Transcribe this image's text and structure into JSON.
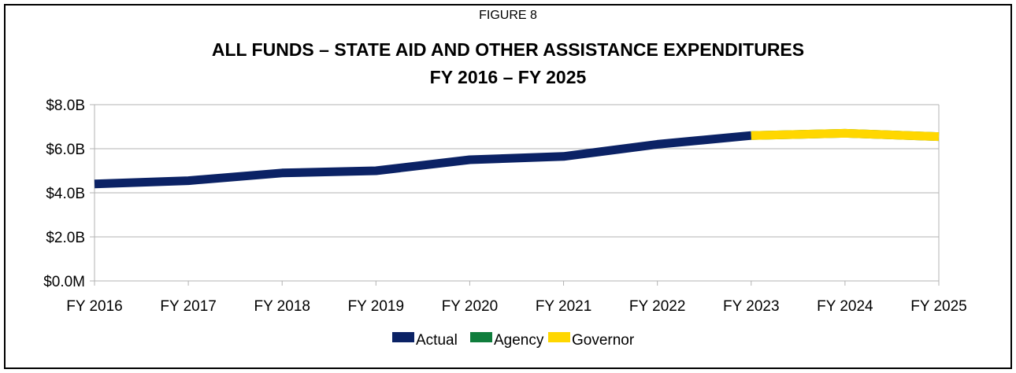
{
  "figure": {
    "label": "FIGURE 8",
    "title_line1": "ALL FUNDS – STATE AID AND OTHER ASSISTANCE EXPENDITURES",
    "title_line2": "FY 2016 – FY 2025"
  },
  "colors": {
    "actual": "#0b2265",
    "agency": "#0f7d3c",
    "governor": "#ffd700",
    "grid": "#b3b3b3",
    "axis": "#b3b3b3"
  },
  "chart_data": {
    "type": "line",
    "title": "ALL FUNDS – STATE AID AND OTHER ASSISTANCE EXPENDITURES",
    "subtitle": "FY 2016 – FY 2025",
    "categories": [
      "FY 2016",
      "FY 2017",
      "FY 2018",
      "FY 2019",
      "FY 2020",
      "FY 2021",
      "FY 2022",
      "FY 2023",
      "FY 2024",
      "FY 2025"
    ],
    "ylim": [
      0,
      8
    ],
    "y_ticks": [
      0,
      2,
      4,
      6,
      8
    ],
    "y_tick_labels": [
      "$0.0M",
      "$2.0B",
      "$4.0B",
      "$6.0B",
      "$8.0B"
    ],
    "xlabel": "",
    "ylabel": "",
    "grid": true,
    "legend_position": "bottom",
    "series": [
      {
        "name": "Actual",
        "values": [
          4.4,
          4.55,
          4.9,
          5.0,
          5.5,
          5.65,
          6.2,
          6.6,
          null,
          null
        ]
      },
      {
        "name": "Agency",
        "values": [
          null,
          null,
          null,
          null,
          null,
          null,
          null,
          6.6,
          6.7,
          6.55
        ]
      },
      {
        "name": "Governor",
        "values": [
          null,
          null,
          null,
          null,
          null,
          null,
          null,
          6.6,
          6.7,
          6.55
        ]
      }
    ]
  }
}
